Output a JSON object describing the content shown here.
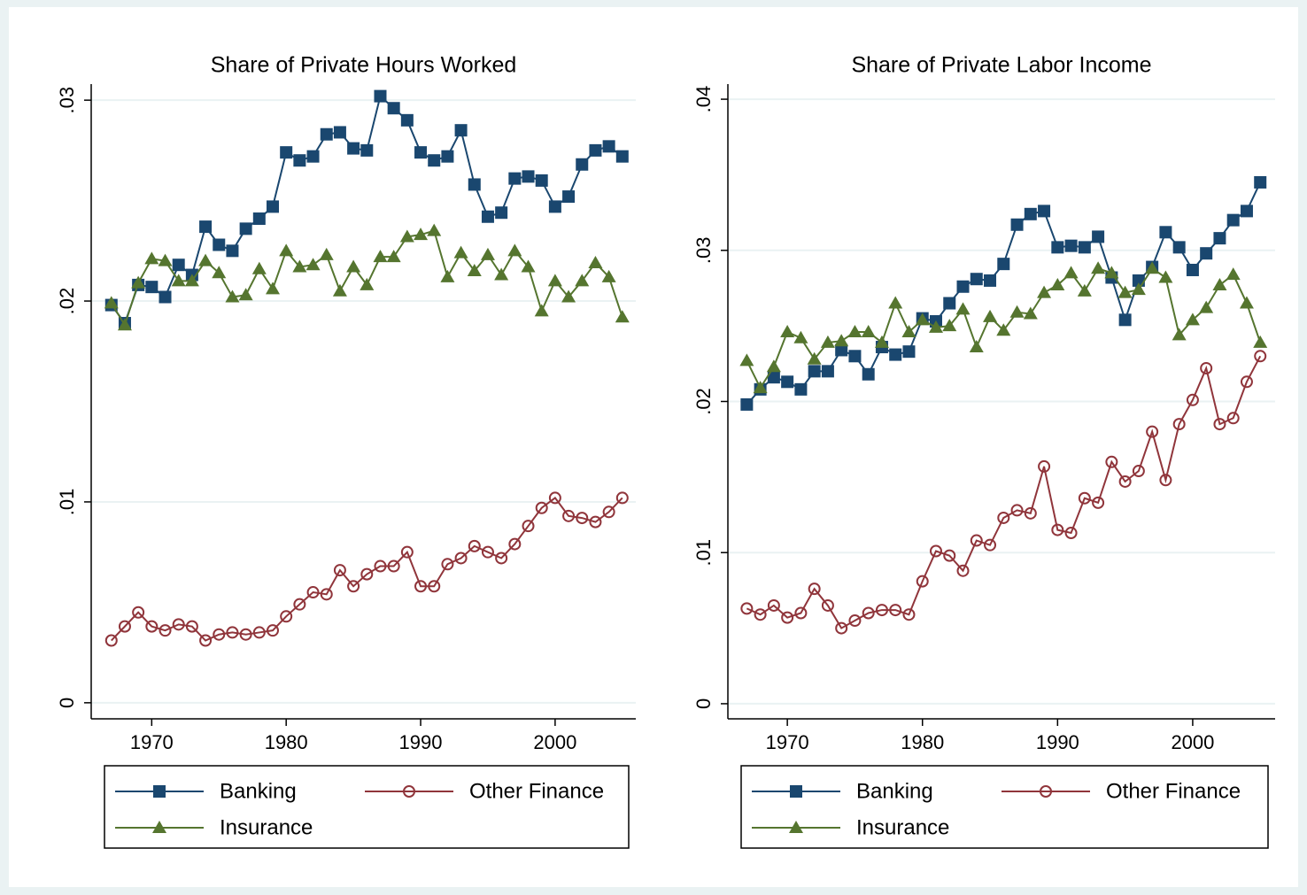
{
  "chart_data": [
    {
      "type": "line",
      "title": "Share of Private Hours Worked",
      "x": [
        1967,
        1968,
        1969,
        1970,
        1971,
        1972,
        1973,
        1974,
        1975,
        1976,
        1977,
        1978,
        1979,
        1980,
        1981,
        1982,
        1983,
        1984,
        1985,
        1986,
        1987,
        1988,
        1989,
        1990,
        1991,
        1992,
        1993,
        1994,
        1995,
        1996,
        1997,
        1998,
        1999,
        2000,
        2001,
        2002,
        2003,
        2004,
        2005
      ],
      "series": [
        {
          "name": "Banking",
          "color": "#1a476f",
          "marker": "square",
          "values": [
            0.0198,
            0.0189,
            0.0208,
            0.0207,
            0.0202,
            0.0218,
            0.0213,
            0.0237,
            0.0228,
            0.0225,
            0.0236,
            0.0241,
            0.0247,
            0.0274,
            0.027,
            0.0272,
            0.0283,
            0.0284,
            0.0276,
            0.0275,
            0.0302,
            0.0296,
            0.029,
            0.0274,
            0.027,
            0.0272,
            0.0285,
            0.0258,
            0.0242,
            0.0244,
            0.0261,
            0.0262,
            0.026,
            0.0247,
            0.0252,
            0.0268,
            0.0275,
            0.0277,
            0.0272
          ]
        },
        {
          "name": "Other Finance",
          "color": "#90353b",
          "marker": "circle",
          "values": [
            0.0031,
            0.0038,
            0.0045,
            0.0038,
            0.0036,
            0.0039,
            0.0038,
            0.0031,
            0.0034,
            0.0035,
            0.0034,
            0.0035,
            0.0036,
            0.0043,
            0.0049,
            0.0055,
            0.0054,
            0.0066,
            0.0058,
            0.0064,
            0.0068,
            0.0068,
            0.0075,
            0.0058,
            0.0058,
            0.0069,
            0.0072,
            0.0078,
            0.0075,
            0.0072,
            0.0079,
            0.0088,
            0.0097,
            0.0102,
            0.0093,
            0.0092,
            0.009,
            0.0095,
            0.0102
          ]
        },
        {
          "name": "Insurance",
          "color": "#55752f",
          "marker": "triangle",
          "values": [
            0.0199,
            0.0188,
            0.0209,
            0.0221,
            0.022,
            0.021,
            0.021,
            0.022,
            0.0214,
            0.0202,
            0.0203,
            0.0216,
            0.0206,
            0.0225,
            0.0217,
            0.0218,
            0.0223,
            0.0205,
            0.0217,
            0.0208,
            0.0222,
            0.0222,
            0.0232,
            0.0233,
            0.0235,
            0.0212,
            0.0224,
            0.0215,
            0.0223,
            0.0213,
            0.0225,
            0.0217,
            0.0195,
            0.021,
            0.0202,
            0.021,
            0.0219,
            0.0212,
            0.0192
          ]
        }
      ],
      "xlim": [
        1965.5,
        2006
      ],
      "ylim": [
        -0.0008,
        0.0308
      ],
      "xticks": [
        1970,
        1980,
        1990,
        2000
      ],
      "yticks": [
        0,
        {
          "value": 0.01,
          "label": ".01"
        },
        {
          "value": 0.02,
          "label": ".02"
        },
        {
          "value": 0.03,
          "label": ".03"
        }
      ],
      "grid": true,
      "legend": "bottom"
    },
    {
      "type": "line",
      "title": "Share of Private Labor Income",
      "x": [
        1967,
        1968,
        1969,
        1970,
        1971,
        1972,
        1973,
        1974,
        1975,
        1976,
        1977,
        1978,
        1979,
        1980,
        1981,
        1982,
        1983,
        1984,
        1985,
        1986,
        1987,
        1988,
        1989,
        1990,
        1991,
        1992,
        1993,
        1994,
        1995,
        1996,
        1997,
        1998,
        1999,
        2000,
        2001,
        2002,
        2003,
        2004,
        2005
      ],
      "series": [
        {
          "name": "Banking",
          "color": "#1a476f",
          "marker": "square",
          "values": [
            0.0198,
            0.0208,
            0.0216,
            0.0213,
            0.0208,
            0.022,
            0.022,
            0.0234,
            0.023,
            0.0218,
            0.0236,
            0.0231,
            0.0233,
            0.0255,
            0.0253,
            0.0265,
            0.0276,
            0.0281,
            0.028,
            0.0291,
            0.0317,
            0.0324,
            0.0326,
            0.0302,
            0.0303,
            0.0302,
            0.0309,
            0.0282,
            0.0254,
            0.028,
            0.0289,
            0.0312,
            0.0302,
            0.0287,
            0.0298,
            0.0308,
            0.032,
            0.0326,
            0.0345
          ]
        },
        {
          "name": "Other Finance",
          "color": "#90353b",
          "marker": "circle",
          "values": [
            0.0063,
            0.0059,
            0.0065,
            0.0057,
            0.006,
            0.0076,
            0.0065,
            0.005,
            0.0055,
            0.006,
            0.0062,
            0.0062,
            0.0059,
            0.0081,
            0.0101,
            0.0098,
            0.0088,
            0.0108,
            0.0105,
            0.0123,
            0.0128,
            0.0126,
            0.0157,
            0.0115,
            0.0113,
            0.0136,
            0.0133,
            0.016,
            0.0147,
            0.0154,
            0.018,
            0.0148,
            0.0185,
            0.0201,
            0.0222,
            0.0185,
            0.0189,
            0.0213,
            0.023
          ]
        },
        {
          "name": "Insurance",
          "color": "#55752f",
          "marker": "triangle",
          "values": [
            0.0227,
            0.0209,
            0.0223,
            0.0246,
            0.0242,
            0.0228,
            0.0239,
            0.024,
            0.0246,
            0.0246,
            0.0239,
            0.0265,
            0.0246,
            0.0254,
            0.0249,
            0.025,
            0.0261,
            0.0236,
            0.0256,
            0.0247,
            0.0259,
            0.0258,
            0.0272,
            0.0277,
            0.0285,
            0.0273,
            0.0288,
            0.0285,
            0.0272,
            0.0274,
            0.0288,
            0.0282,
            0.0244,
            0.0254,
            0.0262,
            0.0277,
            0.0284,
            0.0265,
            0.0239
          ]
        }
      ],
      "xlim": [
        1965.6,
        2006.1
      ],
      "ylim": [
        -0.001,
        0.041
      ],
      "xticks": [
        1970,
        1980,
        1990,
        2000
      ],
      "yticks": [
        0,
        {
          "value": 0.01,
          "label": ".01"
        },
        {
          "value": 0.02,
          "label": ".02"
        },
        {
          "value": 0.03,
          "label": ".03"
        },
        {
          "value": 0.04,
          "label": ".04"
        }
      ],
      "grid": true,
      "legend": "bottom"
    }
  ]
}
